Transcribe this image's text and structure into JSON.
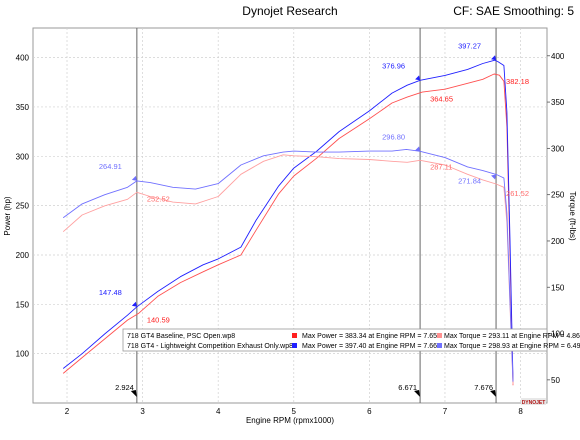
{
  "header": {
    "title": "Dynojet Research",
    "right": "CF: SAE  Smoothing: 5"
  },
  "chart_data": {
    "type": "line",
    "xlabel": "Engine RPM (rpmx1000)",
    "ylabel_left": "Power (hp)",
    "ylabel_right": "Torque (ft-lbs)",
    "xlim": [
      1.55,
      8.35
    ],
    "ylim_left": [
      50,
      430
    ],
    "ylim_right": [
      25,
      430
    ],
    "x_ticks": [
      "2",
      "3",
      "4",
      "5",
      "6",
      "7",
      "8"
    ],
    "y_ticks_left": [
      "100",
      "150",
      "200",
      "250",
      "300",
      "350",
      "400"
    ],
    "y_ticks_right": [
      "50",
      "100",
      "150",
      "200",
      "250",
      "300",
      "350",
      "400"
    ],
    "grid": true,
    "cursor_lines": [
      {
        "x": 2.924,
        "label": "2.924"
      },
      {
        "x": 6.671,
        "label": "6.671"
      },
      {
        "x": 7.676,
        "label": "7.676"
      }
    ],
    "series": [
      {
        "name": "718 GT4 Baseline, PSC Open.wp8",
        "quantity": "power",
        "color": "#ff5050",
        "x": [
          1.95,
          2.2,
          2.5,
          2.8,
          2.95,
          3.2,
          3.5,
          3.8,
          4.0,
          4.3,
          4.5,
          4.8,
          5.0,
          5.3,
          5.6,
          6.0,
          6.3,
          6.5,
          6.7,
          7.0,
          7.3,
          7.5,
          7.65,
          7.72,
          7.78,
          7.82,
          7.86,
          7.9
        ],
        "values": [
          80,
          96,
          115,
          134,
          141,
          158,
          172,
          183,
          190,
          200,
          225,
          262,
          280,
          298,
          318,
          338,
          354,
          360,
          365,
          368,
          374,
          378,
          383.34,
          382.18,
          376,
          330,
          200,
          68
        ]
      },
      {
        "name": "718 GT4 - Lightweight Competition Exhaust Only.wp8",
        "quantity": "power",
        "color": "#2020ff",
        "x": [
          1.95,
          2.2,
          2.5,
          2.8,
          2.924,
          3.2,
          3.5,
          3.8,
          4.0,
          4.3,
          4.5,
          4.8,
          5.0,
          5.3,
          5.6,
          6.0,
          6.3,
          6.5,
          6.671,
          7.0,
          7.3,
          7.5,
          7.66,
          7.7,
          7.78,
          7.82,
          7.86,
          7.9
        ],
        "values": [
          85,
          100,
          120,
          139,
          147.48,
          163,
          178,
          190,
          196,
          208,
          235,
          270,
          288,
          305,
          325,
          346,
          364,
          372,
          376.96,
          382,
          388,
          394,
          397.4,
          396,
          392,
          345,
          215,
          72
        ]
      },
      {
        "name": "718 GT4 Baseline, PSC Open.wp8",
        "quantity": "torque",
        "color": "#ffa0a0",
        "x": [
          1.95,
          2.2,
          2.5,
          2.8,
          2.924,
          3.1,
          3.4,
          3.7,
          4.0,
          4.3,
          4.6,
          4.86,
          5.0,
          5.3,
          5.6,
          6.0,
          6.3,
          6.5,
          6.671,
          7.0,
          7.3,
          7.5,
          7.676,
          7.78,
          7.82,
          7.86,
          7.9
        ],
        "values": [
          210,
          228,
          238,
          245,
          252.52,
          248,
          242,
          240,
          248,
          272,
          286,
          293.11,
          292,
          291,
          289,
          288,
          286,
          285,
          287.11,
          282,
          272,
          266,
          261.52,
          258,
          220,
          130,
          45
        ]
      },
      {
        "name": "718 GT4 - Lightweight Competition Exhaust Only.wp8",
        "quantity": "torque",
        "color": "#7070ff",
        "x": [
          1.95,
          2.2,
          2.5,
          2.8,
          2.924,
          3.1,
          3.4,
          3.7,
          4.0,
          4.3,
          4.6,
          4.86,
          5.0,
          5.3,
          5.6,
          6.0,
          6.3,
          6.49,
          6.671,
          7.0,
          7.3,
          7.5,
          7.676,
          7.78,
          7.82,
          7.86,
          7.9
        ],
        "values": [
          225,
          240,
          250,
          258,
          264.91,
          263,
          258,
          256,
          262,
          282,
          292,
          296,
          297,
          296,
          296,
          297,
          297,
          298.93,
          296.8,
          290,
          280,
          276,
          271.84,
          268,
          230,
          135,
          48
        ]
      }
    ],
    "annotations": [
      {
        "text": "264.91",
        "x": 2.924,
        "y": 264.91,
        "axis": "right",
        "color": "#7070ff"
      },
      {
        "text": "252.52",
        "x": 2.924,
        "y": 252.52,
        "axis": "right",
        "color": "#ff6b6b"
      },
      {
        "text": "147.48",
        "x": 2.924,
        "y": 147.48,
        "axis": "left",
        "color": "#2020ff"
      },
      {
        "text": "140.59",
        "x": 2.924,
        "y": 140.59,
        "axis": "left",
        "color": "#ff2020"
      },
      {
        "text": "376.96",
        "x": 6.671,
        "y": 376.96,
        "axis": "left",
        "color": "#2020ff"
      },
      {
        "text": "364.65",
        "x": 6.671,
        "y": 364.65,
        "axis": "left",
        "color": "#ff2020"
      },
      {
        "text": "296.80",
        "x": 6.671,
        "y": 296.8,
        "axis": "right",
        "color": "#7070ff"
      },
      {
        "text": "287.11",
        "x": 6.671,
        "y": 287.11,
        "axis": "right",
        "color": "#ff6b6b"
      },
      {
        "text": "397.27",
        "x": 7.676,
        "y": 397.27,
        "axis": "left",
        "color": "#2020ff"
      },
      {
        "text": "382.18",
        "x": 7.676,
        "y": 382.18,
        "axis": "left",
        "color": "#ff2020"
      },
      {
        "text": "271.84",
        "x": 7.676,
        "y": 271.84,
        "axis": "right",
        "color": "#7070ff"
      },
      {
        "text": "261.52",
        "x": 7.676,
        "y": 261.52,
        "axis": "right",
        "color": "#ff6b6b"
      }
    ],
    "legend": {
      "placement": "bottom-right",
      "rows": [
        {
          "file": "718 GT4 Baseline, PSC Open.wp8",
          "power_color": "#ff2020",
          "power_text": "Max Power = 383.34 at Engine RPM = 7.65",
          "torque_color": "#ff9090",
          "torque_text": "Max Torque = 293.11 at Engine RPM = 4.86"
        },
        {
          "file": "718 GT4 - Lightweight Competition Exhaust Only.wp8",
          "power_color": "#2020ff",
          "power_text": "Max Power = 397.40 at Engine RPM = 7.66",
          "torque_color": "#7070ff",
          "torque_text": "Max Torque = 298.93 at Engine RPM = 6.49"
        }
      ]
    },
    "logo": "DYNOJET"
  }
}
